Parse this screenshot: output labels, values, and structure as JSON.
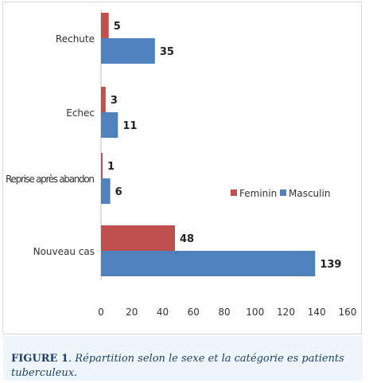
{
  "chart_data": {
    "type": "bar",
    "orientation": "horizontal",
    "categories": [
      "Rechute",
      "Echec",
      "Reprise après abandon",
      "Nouveau cas"
    ],
    "series": [
      {
        "name": "Feminin",
        "color": "#c0504d",
        "values": [
          5,
          3,
          1,
          48
        ]
      },
      {
        "name": "Masculin",
        "color": "#4f81bd",
        "values": [
          35,
          11,
          6,
          139
        ]
      }
    ],
    "xlim": [
      0,
      160
    ],
    "xticks": [
      0,
      20,
      40,
      60,
      80,
      100,
      120,
      140,
      160
    ],
    "grid": false,
    "legend": "right-middle"
  },
  "caption": {
    "label": "FIGURE 1",
    "text": ". Répartition selon le sexe et  la catégorie es patients tuberculeux."
  }
}
